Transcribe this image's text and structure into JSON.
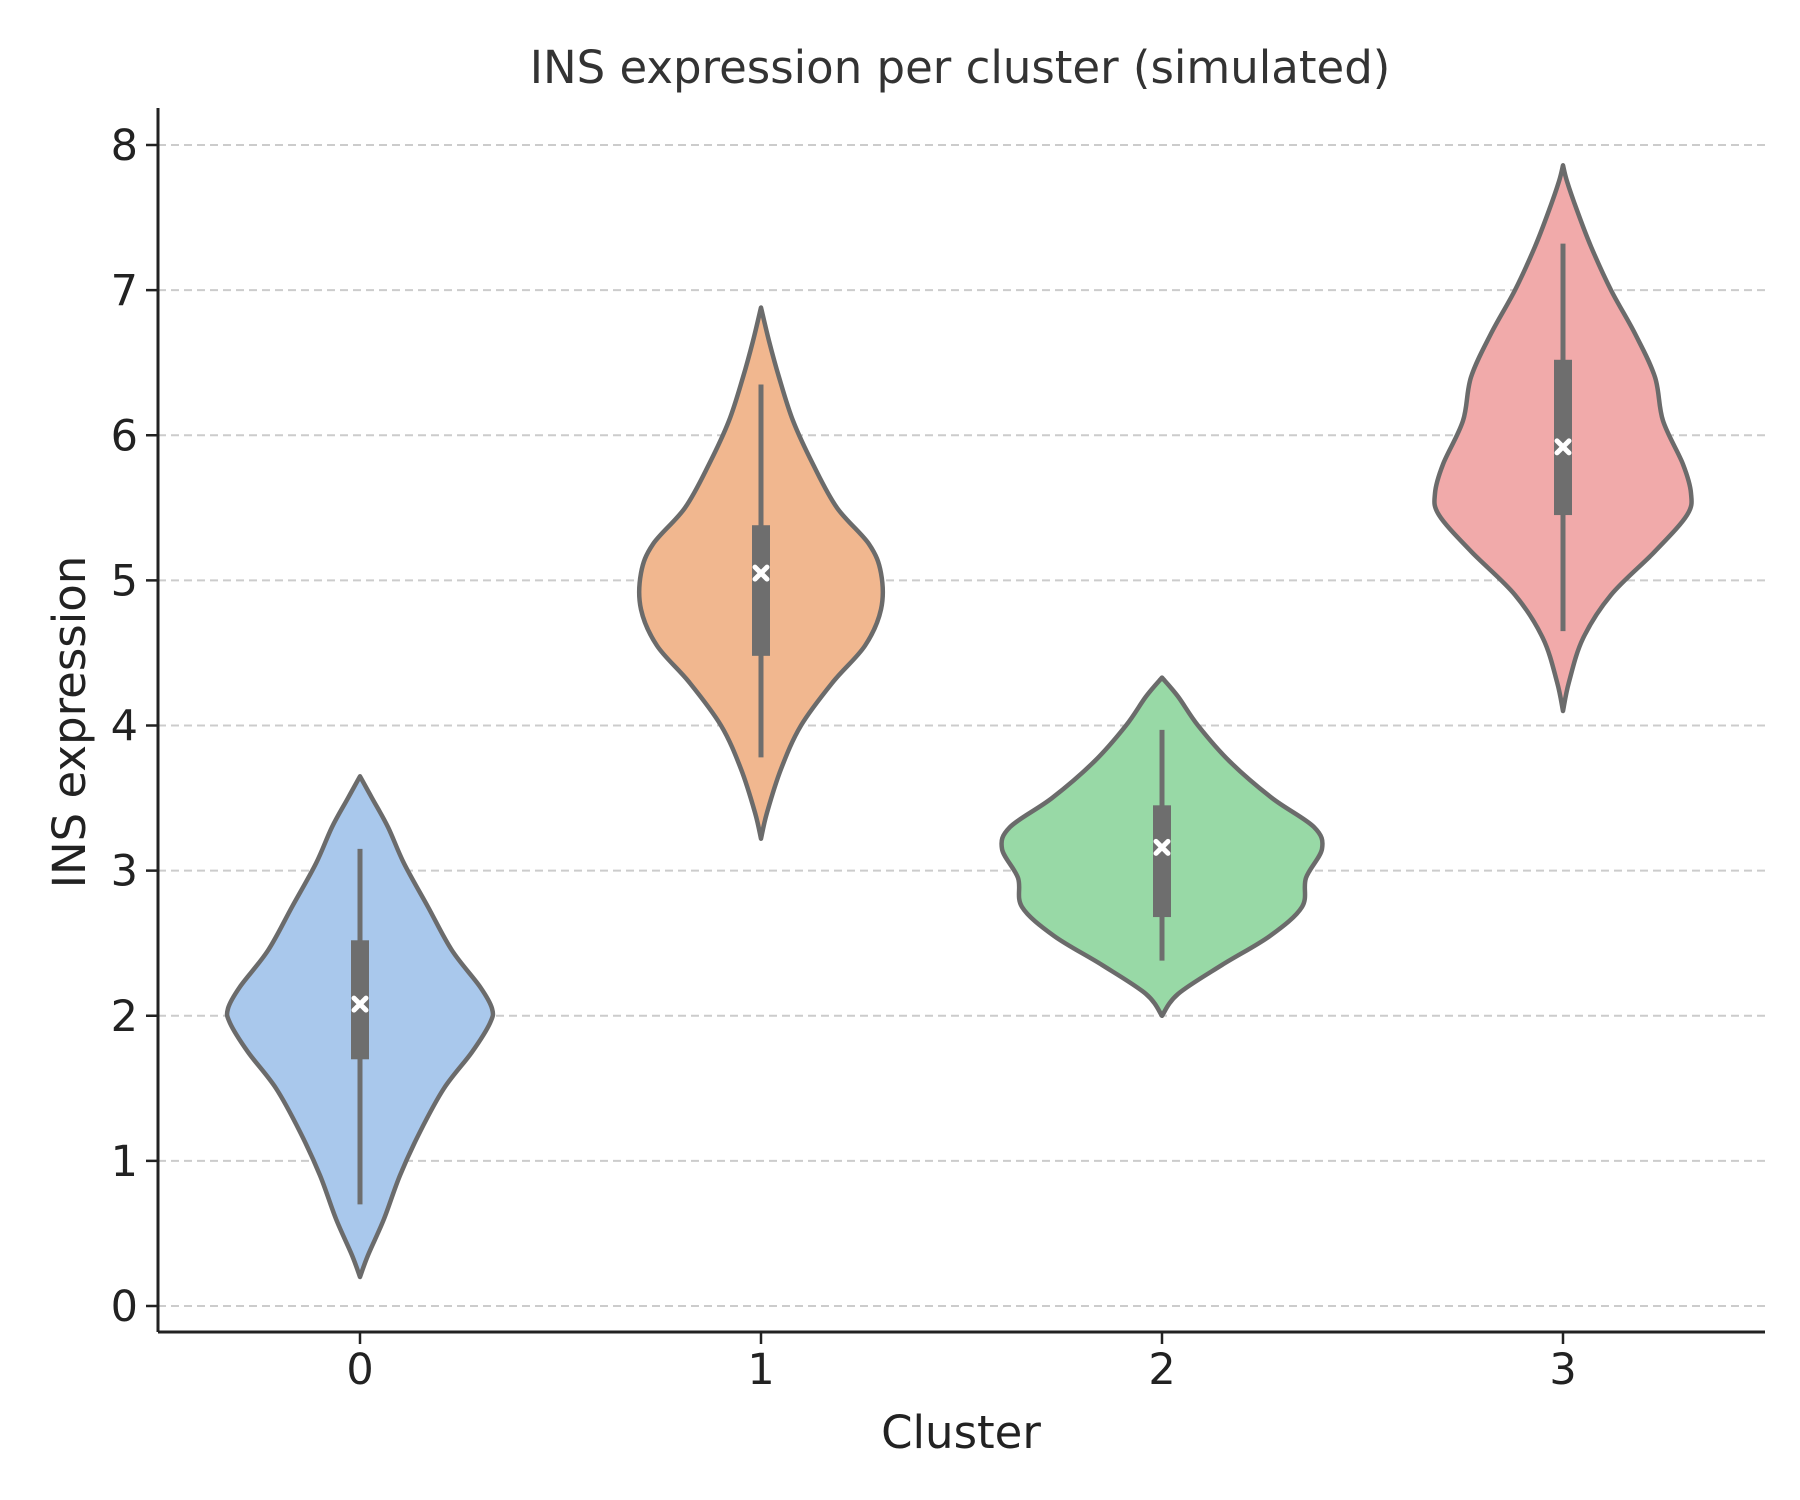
{
  "chart_data": {
    "type": "violin",
    "title": "INS expression per cluster (simulated)",
    "xlabel": "Cluster",
    "ylabel": "INS expression",
    "ylim": [
      -0.2,
      8.25
    ],
    "yticks": [
      "0",
      "1",
      "2",
      "3",
      "4",
      "5",
      "6",
      "7",
      "8"
    ],
    "grid": "y-dashed",
    "categories": [
      "0",
      "1",
      "2",
      "3"
    ],
    "violins": [
      {
        "category": "0",
        "color": "#a9c8ec",
        "min": 0.2,
        "max": 3.65,
        "whisker_low": 0.7,
        "whisker_high": 3.15,
        "q1": 1.7,
        "q3": 2.52,
        "mean": 2.08,
        "density_profile": [
          [
            0.2,
            0.0
          ],
          [
            0.35,
            0.04
          ],
          [
            0.6,
            0.12
          ],
          [
            0.9,
            0.2
          ],
          [
            1.2,
            0.3
          ],
          [
            1.5,
            0.42
          ],
          [
            1.75,
            0.56
          ],
          [
            1.95,
            0.65
          ],
          [
            2.05,
            0.66
          ],
          [
            2.2,
            0.6
          ],
          [
            2.45,
            0.46
          ],
          [
            2.75,
            0.34
          ],
          [
            3.05,
            0.22
          ],
          [
            3.3,
            0.14
          ],
          [
            3.5,
            0.06
          ],
          [
            3.65,
            0.0
          ]
        ]
      },
      {
        "category": "1",
        "color": "#f1b78f",
        "min": 3.22,
        "max": 6.88,
        "whisker_low": 3.78,
        "whisker_high": 6.35,
        "q1": 4.48,
        "q3": 5.38,
        "mean": 5.05,
        "density_profile": [
          [
            3.22,
            0.0
          ],
          [
            3.4,
            0.03
          ],
          [
            3.7,
            0.1
          ],
          [
            4.0,
            0.2
          ],
          [
            4.3,
            0.36
          ],
          [
            4.55,
            0.52
          ],
          [
            4.8,
            0.6
          ],
          [
            5.05,
            0.6
          ],
          [
            5.25,
            0.54
          ],
          [
            5.5,
            0.38
          ],
          [
            5.8,
            0.26
          ],
          [
            6.1,
            0.16
          ],
          [
            6.4,
            0.09
          ],
          [
            6.65,
            0.04
          ],
          [
            6.88,
            0.0
          ]
        ]
      },
      {
        "category": "2",
        "color": "#98d9a6",
        "min": 2.0,
        "max": 4.33,
        "whisker_low": 2.38,
        "whisker_high": 3.97,
        "q1": 2.68,
        "q3": 3.45,
        "mean": 3.16,
        "density_profile": [
          [
            2.0,
            0.0
          ],
          [
            2.15,
            0.08
          ],
          [
            2.35,
            0.3
          ],
          [
            2.55,
            0.54
          ],
          [
            2.75,
            0.7
          ],
          [
            2.95,
            0.72
          ],
          [
            3.15,
            0.8
          ],
          [
            3.3,
            0.76
          ],
          [
            3.5,
            0.55
          ],
          [
            3.75,
            0.34
          ],
          [
            4.0,
            0.18
          ],
          [
            4.2,
            0.08
          ],
          [
            4.33,
            0.0
          ]
        ]
      },
      {
        "category": "3",
        "color": "#f1aaaa",
        "min": 4.1,
        "max": 7.86,
        "whisker_low": 4.65,
        "whisker_high": 7.32,
        "q1": 5.45,
        "q3": 6.52,
        "mean": 5.92,
        "density_profile": [
          [
            4.1,
            0.0
          ],
          [
            4.3,
            0.03
          ],
          [
            4.6,
            0.1
          ],
          [
            4.9,
            0.24
          ],
          [
            5.2,
            0.46
          ],
          [
            5.45,
            0.62
          ],
          [
            5.6,
            0.64
          ],
          [
            5.8,
            0.6
          ],
          [
            6.1,
            0.5
          ],
          [
            6.4,
            0.46
          ],
          [
            6.7,
            0.36
          ],
          [
            7.0,
            0.24
          ],
          [
            7.3,
            0.14
          ],
          [
            7.55,
            0.07
          ],
          [
            7.75,
            0.02
          ],
          [
            7.86,
            0.0
          ]
        ]
      }
    ]
  }
}
